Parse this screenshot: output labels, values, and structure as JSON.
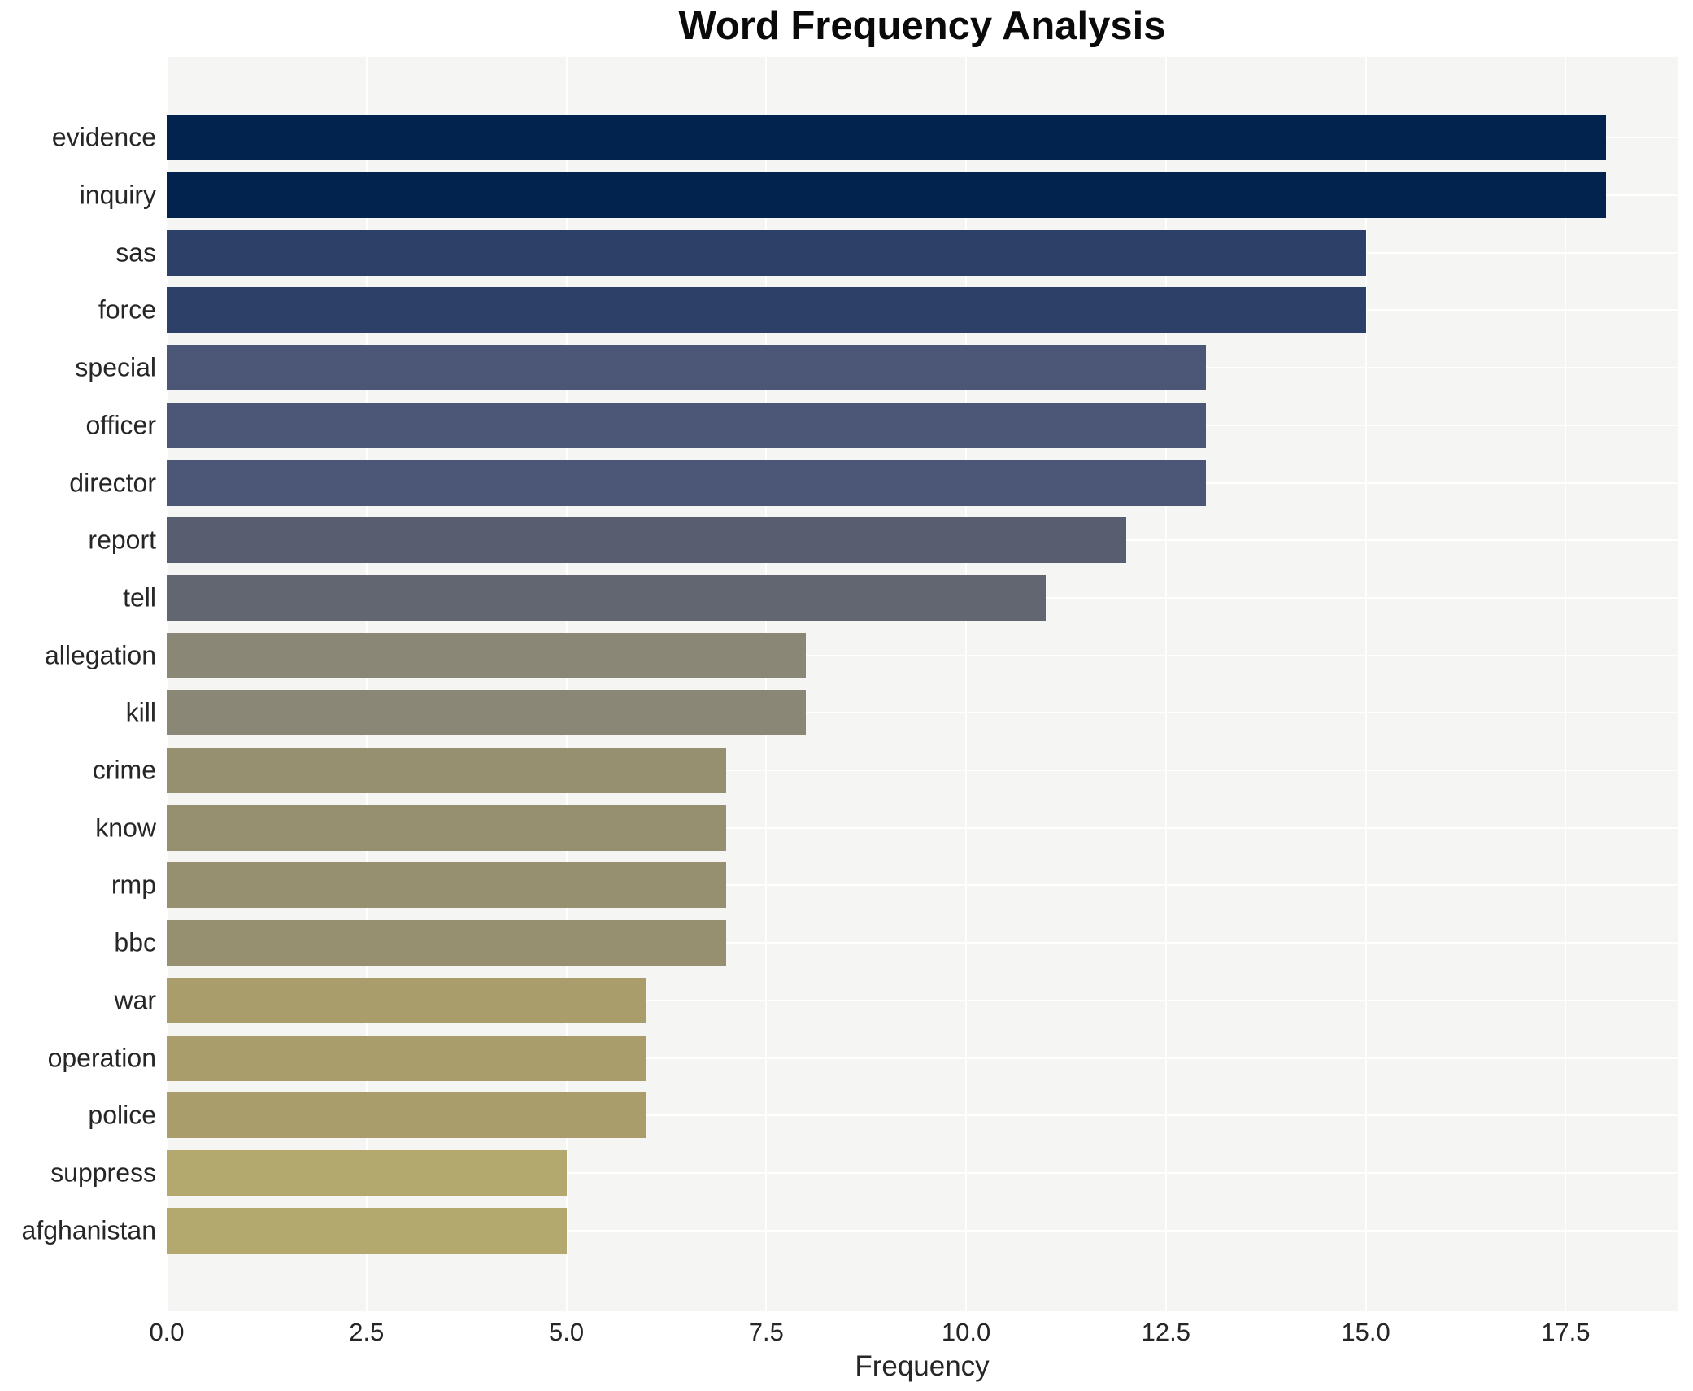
{
  "title": "Word Frequency Analysis",
  "axes": {
    "xlabel": "Frequency",
    "ylabel": ""
  },
  "style": {
    "plot_background": "#f5f5f4",
    "page_background": "#ffffff",
    "gridline_color": "#ffffff",
    "text_color": "#262626",
    "title_color": "#0a0a0a"
  },
  "chart_data": {
    "type": "bar",
    "orientation": "horizontal",
    "title": "Word Frequency Analysis",
    "xlabel": "Frequency",
    "ylabel": "",
    "xlim": [
      0,
      18.9
    ],
    "grid": true,
    "legend": false,
    "categories": [
      "evidence",
      "inquiry",
      "sas",
      "force",
      "special",
      "officer",
      "director",
      "report",
      "tell",
      "allegation",
      "kill",
      "crime",
      "know",
      "rmp",
      "bbc",
      "war",
      "operation",
      "police",
      "suppress",
      "afghanistan"
    ],
    "values": [
      18,
      18,
      15,
      15,
      13,
      13,
      13,
      12,
      11,
      8,
      8,
      7,
      7,
      7,
      7,
      6,
      6,
      6,
      5,
      5
    ],
    "bar_colors": [
      "#02234e",
      "#02234e",
      "#2d4067",
      "#2d4067",
      "#4c5777",
      "#4c5777",
      "#4c5777",
      "#585e6f",
      "#626670",
      "#8a8776",
      "#8a8776",
      "#969070",
      "#969070",
      "#969070",
      "#969070",
      "#a89d6b",
      "#a89d6b",
      "#a89d6b",
      "#b3a86e",
      "#b3a86e"
    ],
    "xticks": [
      {
        "value": 0,
        "label": "0.0"
      },
      {
        "value": 2.5,
        "label": "2.5"
      },
      {
        "value": 5,
        "label": "5.0"
      },
      {
        "value": 7.5,
        "label": "7.5"
      },
      {
        "value": 10,
        "label": "10.0"
      },
      {
        "value": 12.5,
        "label": "12.5"
      },
      {
        "value": 15,
        "label": "15.0"
      },
      {
        "value": 17.5,
        "label": "17.5"
      }
    ]
  }
}
